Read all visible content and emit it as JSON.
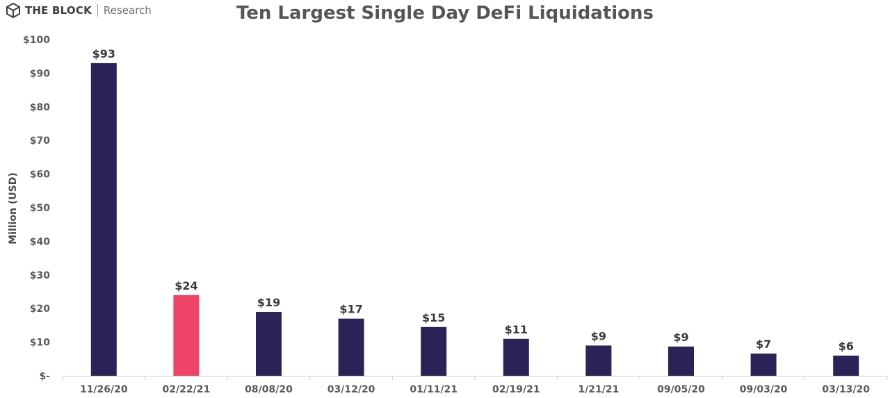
{
  "brand": {
    "name": "THE BLOCK",
    "sub": "Research"
  },
  "chart_data": {
    "type": "bar",
    "title": "Ten Largest Single Day DeFi Liquidations",
    "xlabel": "",
    "ylabel": "Million (USD)",
    "ylim": [
      0,
      100
    ],
    "yticks": [
      0,
      10,
      20,
      30,
      40,
      50,
      60,
      70,
      80,
      90,
      100
    ],
    "ytick_labels": [
      "$-",
      "$10",
      "$20",
      "$30",
      "$40",
      "$50",
      "$60",
      "$70",
      "$80",
      "$90",
      "$100"
    ],
    "categories": [
      "11/26/20",
      "02/22/21",
      "08/08/20",
      "03/12/20",
      "01/11/21",
      "02/19/21",
      "1/21/21",
      "09/05/20",
      "09/03/20",
      "03/13/20"
    ],
    "values": [
      93,
      24,
      19,
      17,
      14.5,
      11,
      9,
      8.7,
      6.6,
      6
    ],
    "data_labels": [
      "$93",
      "$24",
      "$19",
      "$17",
      "$15",
      "$11",
      "$9",
      "$9",
      "$7",
      "$6"
    ],
    "colors": [
      "#2b2358",
      "#ef4467",
      "#2b2358",
      "#2b2358",
      "#2b2358",
      "#2b2358",
      "#2b2358",
      "#2b2358",
      "#2b2358",
      "#2b2358"
    ],
    "grid": false,
    "legend": "none"
  }
}
